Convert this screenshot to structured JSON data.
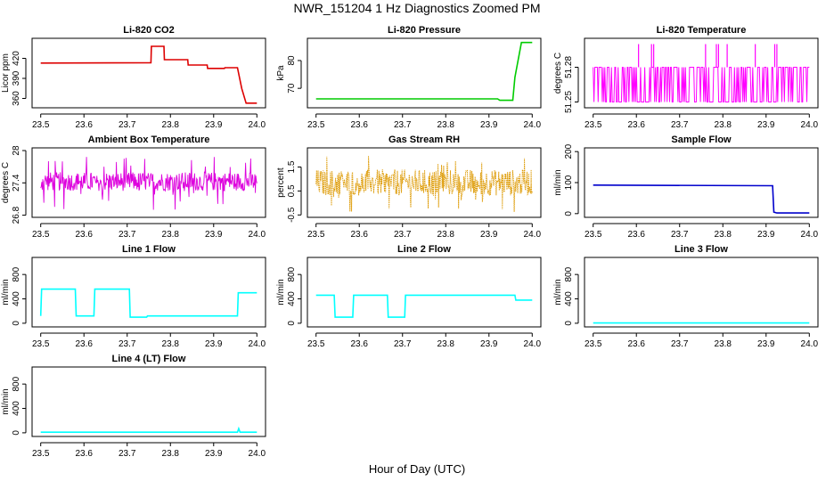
{
  "figure": {
    "title": "NWR_151204  1 Hz Diagnostics Zoomed PM",
    "xlabel": "Hour of Day (UTC)"
  },
  "chart_data": [
    {
      "type": "line",
      "title": "Li-820 CO2",
      "ylabel": "Licor ppm",
      "color": "#dd0000",
      "xlim": [
        23.48,
        24.02
      ],
      "ylim": [
        346,
        450
      ],
      "xticks": [
        23.5,
        23.6,
        23.7,
        23.8,
        23.9,
        24.0
      ],
      "yticks": [
        360,
        390,
        420
      ],
      "x": [
        23.5,
        23.755,
        23.756,
        23.785,
        23.786,
        23.84,
        23.841,
        23.885,
        23.886,
        23.925,
        23.926,
        23.955,
        23.965,
        23.975,
        24.0
      ],
      "y": [
        413,
        413.5,
        438,
        438,
        418,
        418,
        410,
        410,
        405,
        405,
        406,
        406,
        375,
        353,
        353
      ]
    },
    {
      "type": "line",
      "title": "Li-820 Pressure",
      "ylabel": "kPa",
      "color": "#00cc00",
      "xlim": [
        23.48,
        24.02
      ],
      "ylim": [
        63,
        88
      ],
      "xticks": [
        23.5,
        23.6,
        23.7,
        23.8,
        23.9,
        24.0
      ],
      "yticks": [
        70,
        80
      ],
      "x": [
        23.5,
        23.92,
        23.925,
        23.955,
        23.96,
        23.975,
        23.98,
        24.0
      ],
      "y": [
        66.2,
        66.2,
        65.7,
        65.7,
        74,
        86.5,
        86.5,
        86.5
      ]
    },
    {
      "type": "line",
      "title": "Li-820 Temperature",
      "ylabel": "degrees C",
      "color": "#ff00ff",
      "xlim": [
        23.48,
        24.02
      ],
      "ylim": [
        51.245,
        51.305
      ],
      "xticks": [
        23.5,
        23.6,
        23.7,
        23.8,
        23.9,
        24.0
      ],
      "yticks": [
        51.25,
        51.28
      ],
      "levels": [
        51.25,
        51.28,
        51.3
      ],
      "spikes_x": [
        23.605,
        23.635,
        23.64,
        23.76,
        23.785,
        23.79,
        23.81,
        23.875,
        23.92,
        23.925
      ]
    },
    {
      "type": "line",
      "title": "Ambient Box Temperature",
      "ylabel": "degrees C",
      "color": "#dd00dd",
      "xlim": [
        23.48,
        24.02
      ],
      "ylim": [
        26.76,
        28.05
      ],
      "xticks": [
        23.5,
        23.6,
        23.7,
        23.8,
        23.9,
        24.0
      ],
      "yticks": [
        26.8,
        27.4,
        28.0
      ],
      "mean": 27.42,
      "spread": [
        27.25,
        27.6
      ],
      "extremes": [
        26.9,
        27.9
      ]
    },
    {
      "type": "line",
      "title": "Gas Stream RH",
      "ylabel": "percent",
      "color": "#dd9900",
      "xlim": [
        23.48,
        24.02
      ],
      "ylim": [
        -0.6,
        2.3
      ],
      "xticks": [
        23.5,
        23.6,
        23.7,
        23.8,
        23.9,
        24.0
      ],
      "yticks": [
        -0.5,
        0.5,
        1.5
      ],
      "mean": 0.8,
      "spread": [
        0.3,
        1.4
      ],
      "extremes": [
        -0.4,
        2.0
      ]
    },
    {
      "type": "line",
      "title": "Sample Flow",
      "ylabel": "ml/min",
      "color": "#0000cc",
      "xlim": [
        23.48,
        24.02
      ],
      "ylim": [
        -12,
        212
      ],
      "xticks": [
        23.5,
        23.6,
        23.7,
        23.8,
        23.9,
        24.0
      ],
      "yticks": [
        0,
        100,
        200
      ],
      "x": [
        23.5,
        23.915,
        23.918,
        23.925,
        24.0
      ],
      "y": [
        92,
        90,
        5,
        2,
        2
      ]
    },
    {
      "type": "line",
      "title": "Line 1 Flow",
      "ylabel": "ml/min",
      "color": "#00ffff",
      "xlim": [
        23.48,
        24.02
      ],
      "ylim": [
        -60,
        1080
      ],
      "xticks": [
        23.5,
        23.6,
        23.7,
        23.8,
        23.9,
        24.0
      ],
      "yticks": [
        0,
        400,
        800
      ],
      "x": [
        23.5,
        23.502,
        23.58,
        23.582,
        23.623,
        23.625,
        23.705,
        23.707,
        23.745,
        23.747,
        23.955,
        23.957,
        24.0
      ],
      "y": [
        120,
        560,
        560,
        120,
        120,
        560,
        560,
        100,
        100,
        120,
        120,
        500,
        500
      ]
    },
    {
      "type": "line",
      "title": "Line 2 Flow",
      "ylabel": "ml/min",
      "color": "#00ffff",
      "xlim": [
        23.48,
        24.02
      ],
      "ylim": [
        -60,
        1080
      ],
      "xticks": [
        23.5,
        23.6,
        23.7,
        23.8,
        23.9,
        24.0
      ],
      "yticks": [
        0,
        400,
        800
      ],
      "x": [
        23.5,
        23.542,
        23.544,
        23.585,
        23.587,
        23.665,
        23.667,
        23.705,
        23.707,
        23.96,
        23.962,
        24.0
      ],
      "y": [
        460,
        460,
        100,
        100,
        460,
        460,
        100,
        100,
        460,
        460,
        380,
        380
      ]
    },
    {
      "type": "line",
      "title": "Line 3 Flow",
      "ylabel": "ml/min",
      "color": "#00ffff",
      "xlim": [
        23.48,
        24.02
      ],
      "ylim": [
        -60,
        1080
      ],
      "xticks": [
        23.5,
        23.6,
        23.7,
        23.8,
        23.9,
        24.0
      ],
      "yticks": [
        0,
        400,
        800
      ],
      "x": [
        23.5,
        24.0
      ],
      "y": [
        5,
        5
      ]
    },
    {
      "type": "line",
      "title": "Line 4 (LT) Flow",
      "ylabel": "ml/min",
      "color": "#00ffff",
      "xlim": [
        23.48,
        24.02
      ],
      "ylim": [
        -60,
        1080
      ],
      "xticks": [
        23.5,
        23.6,
        23.7,
        23.8,
        23.9,
        24.0
      ],
      "yticks": [
        0,
        400,
        800
      ],
      "x": [
        23.5,
        23.955,
        23.958,
        23.961,
        24.0
      ],
      "y": [
        10,
        10,
        70,
        10,
        10
      ]
    }
  ]
}
